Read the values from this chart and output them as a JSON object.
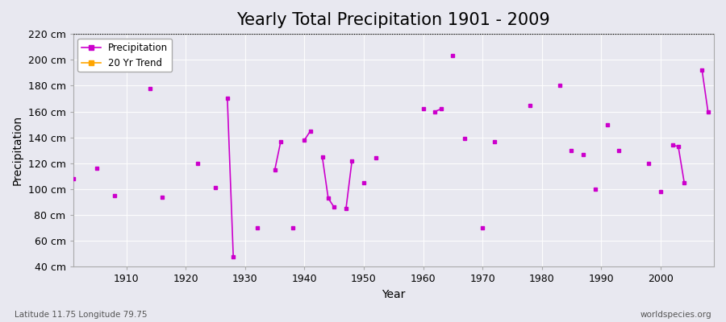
{
  "title": "Yearly Total Precipitation 1901 - 2009",
  "xlabel": "Year",
  "ylabel": "Precipitation",
  "subtitle_left": "Latitude 11.75 Longitude 79.75",
  "subtitle_right": "worldspecies.org",
  "ylim": [
    40,
    220
  ],
  "xlim": [
    1901,
    2009
  ],
  "yticks": [
    40,
    60,
    80,
    100,
    120,
    140,
    160,
    180,
    200,
    220
  ],
  "ytick_labels": [
    "40 cm",
    "60 cm",
    "80 cm",
    "100 cm",
    "120 cm",
    "140 cm",
    "160 cm",
    "180 cm",
    "200 cm",
    "220 cm"
  ],
  "xticks": [
    1910,
    1920,
    1930,
    1940,
    1950,
    1960,
    1970,
    1980,
    1990,
    2000
  ],
  "background_color": "#e8e8f0",
  "plot_bg_color": "#e8e8f0",
  "line_color": "#cc00cc",
  "marker_color": "#cc00cc",
  "trend_color": "#ffa500",
  "precipitation_color": "#cc00cc",
  "year_values": {
    "1901": 108,
    "1905": 116,
    "1908": 95,
    "1914": 178,
    "1916": 94,
    "1922": 120,
    "1925": 101,
    "1927": 170,
    "1928": 48,
    "1932": 70,
    "1935": 115,
    "1936": 137,
    "1938": 70,
    "1940": 138,
    "1941": 145,
    "1943": 125,
    "1944": 93,
    "1945": 86,
    "1947": 85,
    "1948": 122,
    "1950": 105,
    "1952": 124,
    "1960": 162,
    "1962": 160,
    "1963": 162,
    "1965": 203,
    "1967": 139,
    "1970": 70,
    "1972": 137,
    "1978": 165,
    "1983": 180,
    "1985": 130,
    "1987": 127,
    "1989": 100,
    "1991": 150,
    "1993": 130,
    "1998": 120,
    "2000": 98,
    "2002": 134,
    "2003": 133,
    "2004": 105,
    "2007": 192,
    "2008": 160
  },
  "title_fontsize": 15,
  "axis_label_fontsize": 10,
  "tick_fontsize": 9,
  "figsize": [
    9.0,
    4.0
  ],
  "dpi": 100
}
